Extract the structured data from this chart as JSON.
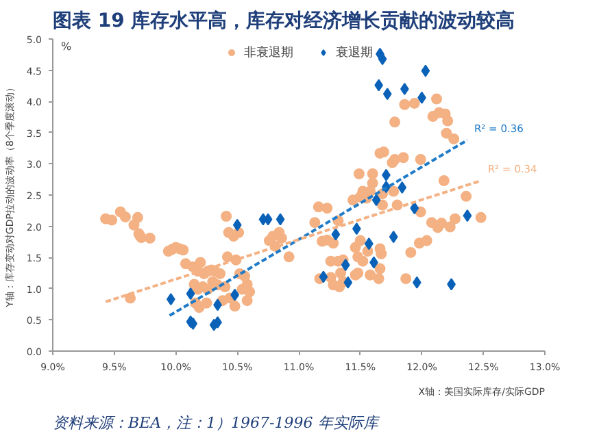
{
  "chart_data": {
    "type": "scatter",
    "title": "图表 19 库存水平高，库存对经济增长贡献的波动较高",
    "xlabel": "X轴：美国实际库存/实际GDP",
    "ylabel": "Y轴：库存变动对GDP拉动的波动率（8个季度滚动）",
    "annotations": [
      "%",
      "R² = 0.36",
      "R² = 0.34",
      "资料来源：BEA，注：1）1967-1996 年实际库"
    ],
    "xlim": [
      9.0,
      13.0
    ],
    "ylim": [
      0.0,
      5.0
    ],
    "xticks": [
      {
        "value": 9.0,
        "label": "9.0%"
      },
      {
        "value": 9.5,
        "label": "9.5%"
      },
      {
        "value": 10.0,
        "label": "10.0%"
      },
      {
        "value": 10.5,
        "label": "10.5%"
      },
      {
        "value": 11.0,
        "label": "11.0%"
      },
      {
        "value": 11.5,
        "label": "11.5%"
      },
      {
        "value": 12.0,
        "label": "12.0%"
      },
      {
        "value": 12.5,
        "label": "12.5%"
      },
      {
        "value": 13.0,
        "label": "13.0%"
      }
    ],
    "yticks": [
      {
        "value": 0.0,
        "label": "0.0"
      },
      {
        "value": 0.5,
        "label": "0.5"
      },
      {
        "value": 1.0,
        "label": "1.0"
      },
      {
        "value": 1.5,
        "label": "1.5"
      },
      {
        "value": 2.0,
        "label": "2.0"
      },
      {
        "value": 2.5,
        "label": "2.5"
      },
      {
        "value": 3.0,
        "label": "3.0"
      },
      {
        "value": 3.5,
        "label": "3.5"
      },
      {
        "value": 4.0,
        "label": "4.0"
      },
      {
        "value": 4.5,
        "label": "4.5"
      },
      {
        "value": 5.0,
        "label": "5.0"
      }
    ],
    "grid": false,
    "legend": "top",
    "series": [
      {
        "name": "非衰退期",
        "color": "#f4b183",
        "marker": "circle",
        "x": [
          9.43,
          9.48,
          9.55,
          9.59,
          9.69,
          9.66,
          9.7,
          9.71,
          9.72,
          9.79,
          9.63,
          9.94,
          9.97,
          10.0,
          10.03,
          10.06,
          10.08,
          10.14,
          10.2,
          10.18,
          10.23,
          10.26,
          10.29,
          10.32,
          10.36,
          10.15,
          10.18,
          10.22,
          10.26,
          10.3,
          10.34,
          10.16,
          10.19,
          10.25,
          10.38,
          10.4,
          10.42,
          10.41,
          10.43,
          10.47,
          10.51,
          10.49,
          10.44,
          10.48,
          10.54,
          10.58,
          10.56,
          10.6,
          10.58,
          10.52,
          10.76,
          10.79,
          10.84,
          10.86,
          10.81,
          10.92,
          11.13,
          11.16,
          11.23,
          11.32,
          11.19,
          11.23,
          11.28,
          11.17,
          11.26,
          11.26,
          11.32,
          11.36,
          11.34,
          11.28,
          11.33,
          11.36,
          11.46,
          11.5,
          11.5,
          11.52,
          11.55,
          11.44,
          11.49,
          11.6,
          11.6,
          11.58,
          11.66,
          11.69,
          11.76,
          11.78,
          11.85,
          11.99,
          11.78,
          11.86,
          11.94,
          12.12,
          12.09,
          12.14,
          12.19,
          12.21,
          12.2,
          12.26,
          11.68,
          11.77,
          11.68,
          11.8,
          11.48,
          11.52,
          11.56,
          11.66,
          11.67,
          11.58,
          11.66,
          11.65,
          11.46,
          11.48,
          11.87,
          11.91,
          11.98,
          12.04,
          12.08,
          12.13,
          12.16,
          12.27,
          12.23,
          12.36,
          12.48,
          12.18,
          11.99
        ],
        "values": [
          2.12,
          2.1,
          2.23,
          2.15,
          2.14,
          2.02,
          1.88,
          1.84,
          1.82,
          1.81,
          0.85,
          1.6,
          1.63,
          1.66,
          1.64,
          1.62,
          1.4,
          1.35,
          1.42,
          1.28,
          1.24,
          1.28,
          1.3,
          1.28,
          1.24,
          1.07,
          0.99,
          1.03,
          0.99,
          1.11,
          1.06,
          0.77,
          0.7,
          0.77,
          0.81,
          1.03,
          1.51,
          2.16,
          1.9,
          1.84,
          1.9,
          1.46,
          0.85,
          0.72,
          0.99,
          1.07,
          1.2,
          0.95,
          0.81,
          1.24,
          1.77,
          1.84,
          1.9,
          1.81,
          1.68,
          1.51,
          2.06,
          2.31,
          2.29,
          2.09,
          1.76,
          1.78,
          1.73,
          1.16,
          1.44,
          1.18,
          1.44,
          1.46,
          1.25,
          1.06,
          1.03,
          1.11,
          1.66,
          1.77,
          2.47,
          2.56,
          2.45,
          2.42,
          2.84,
          2.84,
          2.69,
          2.56,
          3.17,
          3.19,
          3.02,
          3.07,
          3.1,
          3.07,
          3.67,
          3.95,
          3.97,
          4.04,
          3.76,
          3.82,
          3.8,
          3.69,
          3.49,
          3.4,
          2.52,
          2.56,
          2.34,
          2.34,
          1.51,
          1.44,
          1.6,
          1.64,
          1.56,
          1.22,
          1.32,
          1.16,
          1.22,
          1.25,
          1.16,
          1.58,
          1.73,
          1.77,
          2.06,
          1.98,
          2.05,
          2.12,
          1.99,
          2.48,
          2.14,
          2.73,
          2.23
        ]
      },
      {
        "name": "衰退期",
        "color": "#0a62b8",
        "marker": "diamond",
        "x": [
          11.66,
          11.68,
          12.03,
          11.65,
          11.86,
          11.72,
          12.0,
          11.71,
          11.71,
          11.84,
          11.63,
          11.94,
          12.37,
          10.71,
          10.75,
          10.85,
          11.47,
          11.3,
          11.77,
          11.57,
          11.61,
          11.38,
          11.2,
          11.4,
          11.96,
          12.24,
          10.5,
          9.96,
          10.12,
          10.34,
          10.48,
          10.12,
          10.14,
          10.31,
          10.34
        ],
        "values": [
          4.76,
          4.68,
          4.49,
          4.26,
          4.2,
          4.12,
          4.06,
          2.82,
          2.63,
          2.62,
          2.42,
          2.29,
          2.17,
          2.11,
          2.11,
          2.11,
          1.96,
          1.87,
          1.83,
          1.72,
          1.42,
          1.38,
          1.19,
          1.1,
          1.1,
          1.07,
          2.02,
          0.83,
          0.92,
          0.74,
          0.9,
          0.47,
          0.44,
          0.42,
          0.46
        ]
      },
      {
        "type": "line",
        "color": "#1f7bc8",
        "line_style": "dashed",
        "x": [
          9.95,
          12.37
        ],
        "values": [
          0.57,
          3.38
        ]
      },
      {
        "type": "line",
        "color": "#f4b183",
        "line_style": "dashed",
        "x": [
          9.43,
          12.48
        ],
        "values": [
          0.79,
          2.73
        ]
      }
    ]
  }
}
